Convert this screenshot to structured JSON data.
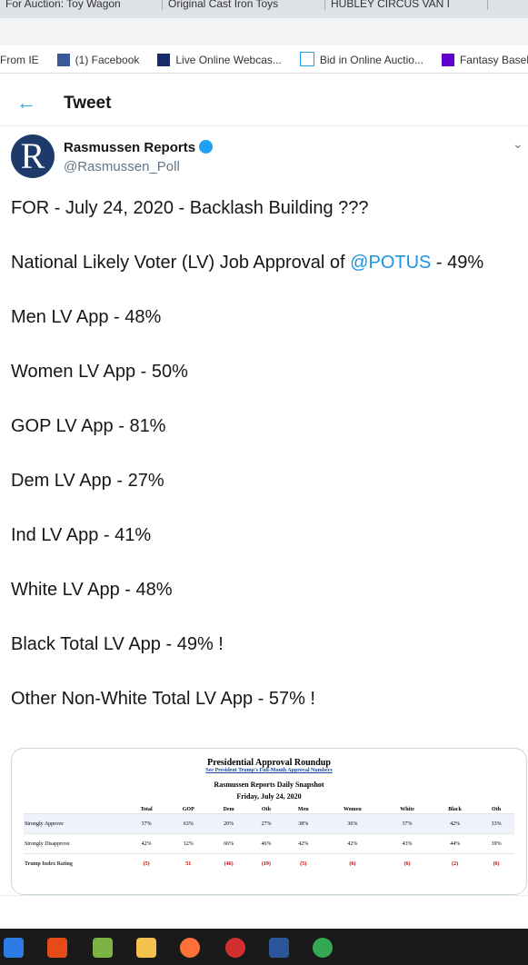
{
  "tabs": [
    "For Auction: Toy Wagon",
    "Original Cast Iron Toys",
    "HUBLEY CIRCUS VAN I"
  ],
  "bookmarks": [
    "From IE",
    "(1) Facebook",
    "Live Online Webcas...",
    "Bid in Online Auctio...",
    "Fantasy Baseba"
  ],
  "header": {
    "title": "Tweet"
  },
  "author": {
    "name": "Rasmussen Reports",
    "handle": "@Rasmussen_Poll"
  },
  "tweet": {
    "first": "FOR - July 24, 2020 - Backlash Building ???",
    "mention_line": {
      "before": "National Likely Voter (LV) Job Approval of ",
      "mention": "@POTUS",
      "after": " - 49%"
    },
    "lines": [
      "Men LV App - 48%",
      "Women LV App - 50%",
      "GOP LV App - 81%",
      "Dem LV App - 27%",
      "Ind LV App - 41%",
      "White LV App - 48%",
      "Black Total LV App - 49% !",
      "Other Non-White Total LV App - 57% !"
    ]
  },
  "image": {
    "title": "Presidential Approval Roundup",
    "link": "See President Trump's Full-Month Approval Numbers",
    "subtitle": "Rasmussen Reports Daily Snapshot",
    "date": "Friday, July 24, 2020",
    "columns": [
      "Total",
      "GOP",
      "Dem",
      "Oth",
      "Men",
      "Women",
      "White",
      "Black",
      "Oth"
    ],
    "rows": [
      {
        "label": "Strongly Approve",
        "cells": [
          "37%",
          "63%",
          "20%",
          "27%",
          "38%",
          "36%",
          "37%",
          "42%",
          "33%"
        ]
      },
      {
        "label": "Strongly Disapprove",
        "cells": [
          "42%",
          "12%",
          "66%",
          "46%",
          "42%",
          "42%",
          "43%",
          "44%",
          "39%"
        ]
      },
      {
        "label": "Trump Index Rating",
        "cells": [
          "(5)",
          "51",
          "(46)",
          "(19)",
          "(5)",
          "(6)",
          "(6)",
          "(2)",
          "(6)"
        ]
      }
    ]
  }
}
